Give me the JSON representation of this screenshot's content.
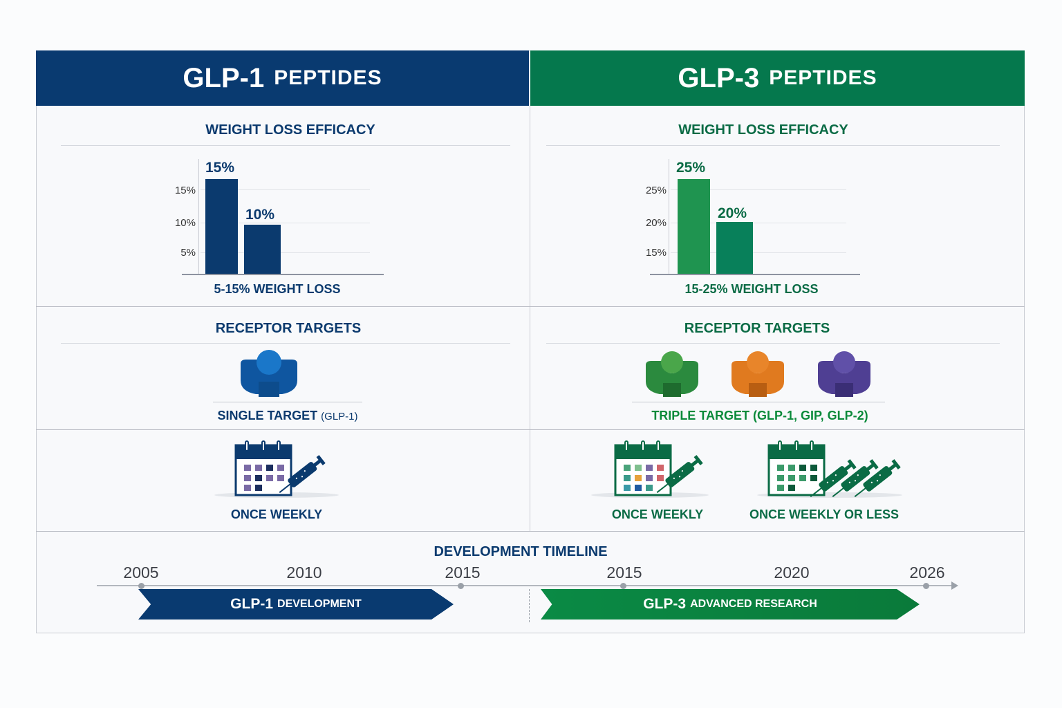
{
  "glp1": {
    "header_big": "GLP-1",
    "header_small": "PEPTIDES",
    "efficacy_title": "WEIGHT LOSS EFFICACY",
    "chart": {
      "type": "bar",
      "y_ticks": [
        "15%",
        "10%",
        "5%"
      ],
      "bar_labels": [
        "15%",
        "10%"
      ],
      "values": [
        15,
        10
      ],
      "caption": "5-15% WEIGHT LOSS",
      "colors": [
        "#0b3a6e",
        "#0b3a6e"
      ]
    },
    "receptor_title": "RECEPTOR TARGETS",
    "receptor_label": "SINGLE TARGET",
    "receptor_detail": "(GLP-1)",
    "receptor_colors": [
      "#1565b0"
    ],
    "dosing": [
      "ONCE WEEKLY"
    ],
    "color": "#0b3a6e"
  },
  "glp3": {
    "header_big": "GLP-3",
    "header_small": "PEPTIDES",
    "efficacy_title": "WEIGHT LOSS EFFICACY",
    "chart": {
      "type": "bar",
      "y_ticks": [
        "25%",
        "20%",
        "15%"
      ],
      "bar_labels": [
        "25%",
        "20%"
      ],
      "values": [
        25,
        20
      ],
      "caption": "15-25% WEIGHT LOSS",
      "colors": [
        "#1f9450",
        "#08805a"
      ]
    },
    "receptor_title": "RECEPTOR TARGETS",
    "receptor_label": "TRIPLE TARGET (GLP-1, GIP, GLP-2)",
    "receptor_colors": [
      "#2e8b3e",
      "#e07a1f",
      "#4f3f93"
    ],
    "dosing": [
      "ONCE WEEKLY",
      "ONCE WEEKLY OR LESS"
    ],
    "color": "#0a6b45"
  },
  "timeline": {
    "title": "DEVELOPMENT TIMELINE",
    "years": [
      "2005",
      "2010",
      "2015",
      "2015",
      "2020",
      "2026"
    ],
    "arrow1_big": "GLP-1",
    "arrow1_small": "DEVELOPMENT",
    "arrow2_big": "GLP-3",
    "arrow2_small": "ADVANCED RESEARCH"
  }
}
